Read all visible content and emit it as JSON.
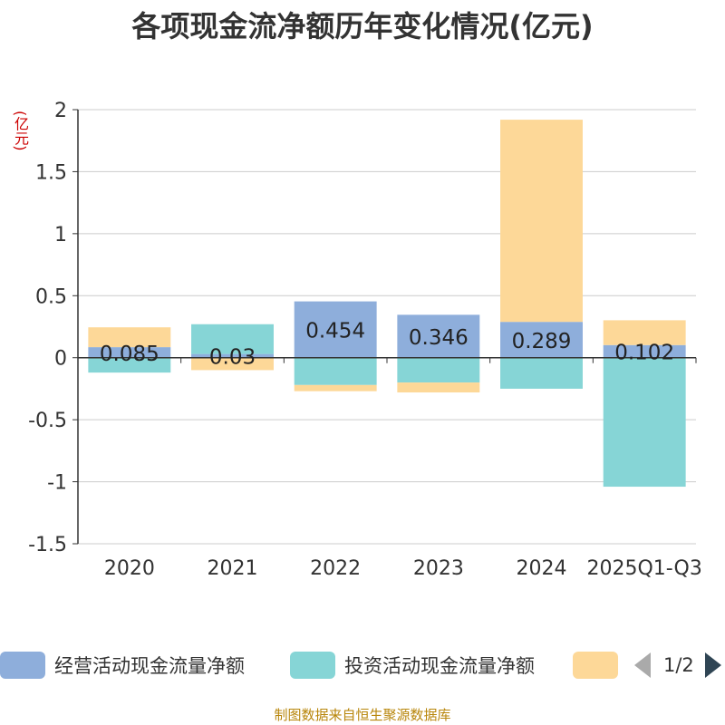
{
  "title": "各项现金流净额历年变化情况(亿元)",
  "unit_label": "(亿元)",
  "source": "制图数据来自恒生聚源数据库",
  "pager": "1/2",
  "colors": {
    "operating": "#8eaedb",
    "investing": "#86d5d6",
    "financing": "#fdd898",
    "text": "#333333",
    "grid": "#cccccc",
    "unit": "#cc0000",
    "source": "#b8860b"
  },
  "chart_data": {
    "type": "bar",
    "stacked": true,
    "title": "各项现金流净额历年变化情况(亿元)",
    "ylabel": "(亿元)",
    "ylim": [
      -1.5,
      2
    ],
    "yticks": [
      -1.5,
      -1,
      -0.5,
      0,
      0.5,
      1,
      1.5,
      2
    ],
    "ytick_labels": [
      "-1.5",
      "-1",
      "-0.5",
      "0",
      "0.5",
      "1",
      "1.5",
      "2"
    ],
    "categories": [
      "2020",
      "2021",
      "2022",
      "2023",
      "2024",
      "2025Q1-Q3"
    ],
    "series": [
      {
        "name": "经营活动现金流量净额",
        "values": [
          0.085,
          0.03,
          0.454,
          0.346,
          0.289,
          0.102
        ],
        "labels": [
          "0.085",
          "0.03",
          "0.454",
          "0.346",
          "0.289",
          "0.102"
        ]
      },
      {
        "name": "投资活动现金流量净额",
        "values": [
          -0.12,
          0.24,
          -0.22,
          -0.2,
          -0.25,
          -1.04
        ]
      },
      {
        "name": "",
        "values": [
          0.16,
          -0.1,
          -0.05,
          -0.08,
          1.63,
          0.2
        ]
      }
    ],
    "legend": [
      "经营活动现金流量净额",
      "投资活动现金流量净额",
      ""
    ],
    "legend_position": "bottom"
  }
}
